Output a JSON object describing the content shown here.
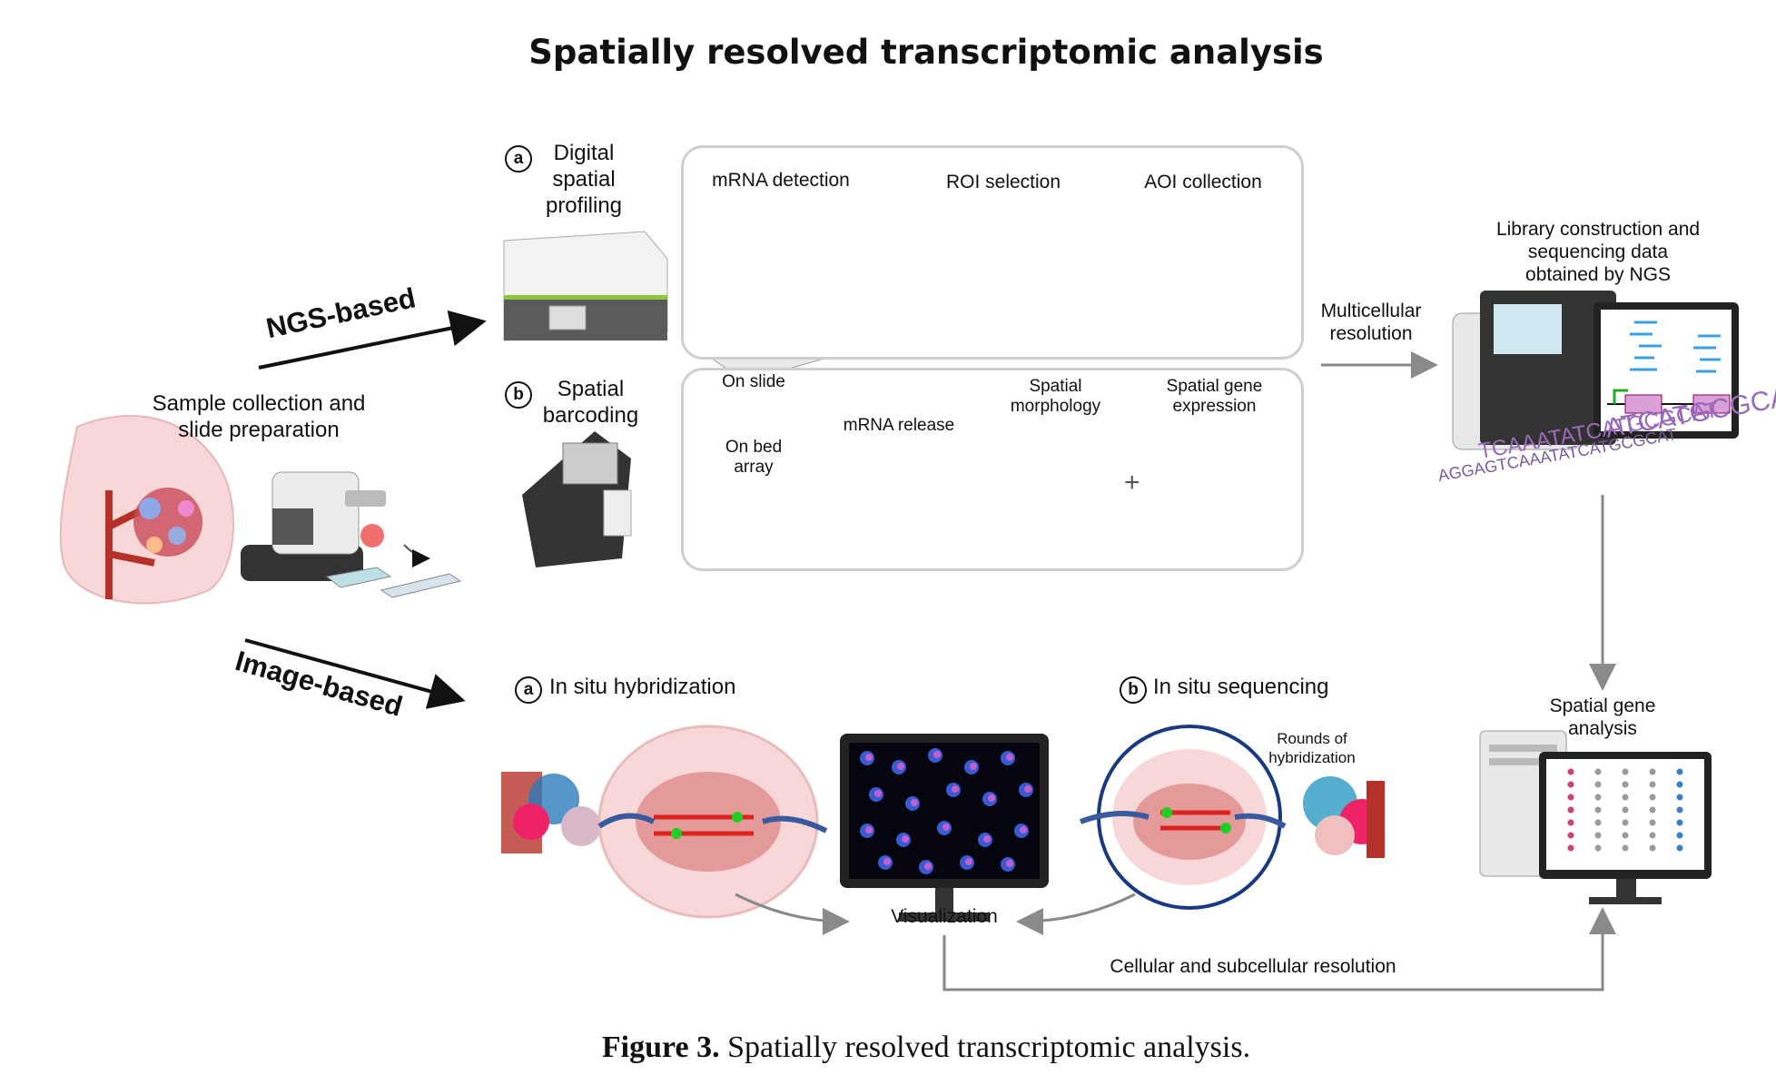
{
  "title": "Spatially resolved transcriptomic analysis",
  "sample": {
    "label": "Sample collection and slide preparation"
  },
  "ngs_based": {
    "arrow_label": "NGS-based",
    "digital": {
      "marker": "a",
      "label": "Digital spatial profiling",
      "steps": [
        "mRNA detection",
        "ROI selection",
        "AOI collection"
      ]
    },
    "barcoding": {
      "marker": "b",
      "label": "Spatial barcoding",
      "on_slide": "On slide",
      "on_bed": "On bed array",
      "mrna_release": "mRNA release",
      "spatial_morphology": "Spatial morphology",
      "spatial_gene_expression": "Spatial gene expression",
      "plus": "+"
    },
    "multicellular": "Multicellular resolution",
    "library": "Library construction and sequencing data obtained by NGS",
    "dna_line1": "AGGAGTCAAATATCATGCGCAT",
    "dna_line2": "TCAAATATCATGCGCAT",
    "dna_line3": "ATCATGCGCATG"
  },
  "image_based": {
    "arrow_label": "Image-based",
    "ish": {
      "marker": "a",
      "label": "In situ hybridization"
    },
    "iss": {
      "marker": "b",
      "label": "In situ sequencing",
      "rounds": "Rounds of hybridization"
    },
    "visualization": "Visualization",
    "resolution": "Cellular and subcellular resolution"
  },
  "spatial_gene_analysis": "Spatial gene analysis",
  "caption": {
    "bold": "Figure 3.",
    "text": " Spatially resolved transcriptomic analysis."
  }
}
